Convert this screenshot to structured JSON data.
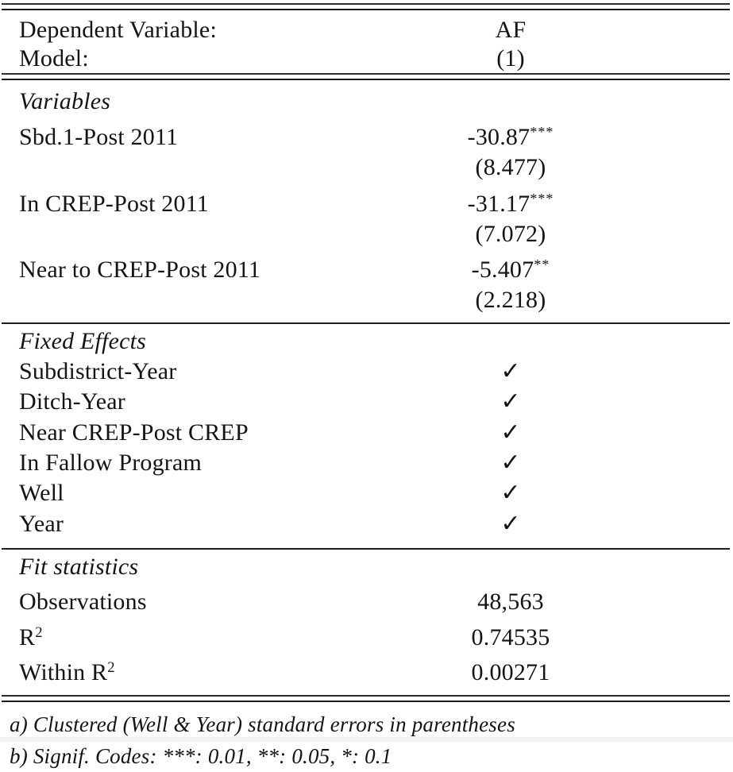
{
  "table": {
    "header": {
      "rows": [
        {
          "label": "Dependent Variable:",
          "value": "AF"
        },
        {
          "label": "Model:",
          "value": "(1)"
        }
      ]
    },
    "variables": {
      "section_title": "Variables",
      "rows": [
        {
          "label": "Sbd.1-Post 2011",
          "value": "-30.87",
          "stars": "***",
          "se": "(8.477)"
        },
        {
          "label": "In CREP-Post 2011",
          "value": "-31.17",
          "stars": "***",
          "se": "(7.072)"
        },
        {
          "label": "Near to CREP-Post 2011",
          "value": "-5.407",
          "stars": "**",
          "se": "(2.218)"
        }
      ]
    },
    "fixed_effects": {
      "section_title": "Fixed Effects",
      "check_glyph": "✓",
      "rows": [
        {
          "label": "Subdistrict-Year"
        },
        {
          "label": "Ditch-Year"
        },
        {
          "label": "Near CREP-Post CREP"
        },
        {
          "label": "In Fallow Program"
        },
        {
          "label": "Well"
        },
        {
          "label": "Year"
        }
      ]
    },
    "fit_statistics": {
      "section_title": "Fit statistics",
      "rows": [
        {
          "label": "Observations",
          "label_sup": "",
          "value": "48,563"
        },
        {
          "label": "R",
          "label_sup": "2",
          "value": "0.74535"
        },
        {
          "label": "Within R",
          "label_sup": "2",
          "value": "0.00271"
        }
      ]
    },
    "footnotes": [
      "a) Clustered (Well & Year) standard errors in parentheses",
      "b) Signif. Codes: ***: 0.01, **: 0.05, *: 0.1"
    ]
  },
  "colors": {
    "text": "#141414",
    "rule": "#1e1e1e",
    "background": "#ffffff",
    "bottom_strip": "#f1f2f6"
  }
}
